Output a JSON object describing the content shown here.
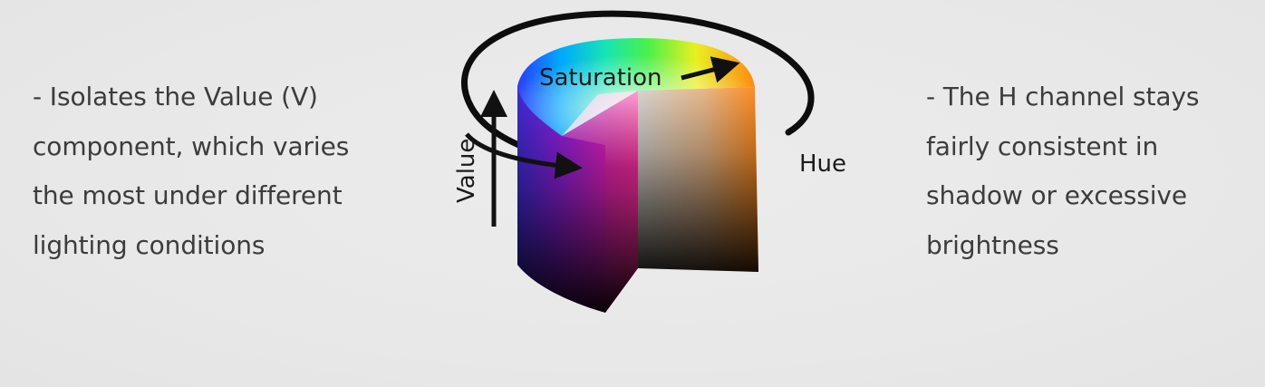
{
  "left_note": {
    "lines": [
      " - Isolates the Value (V)",
      "component, which varies",
      "the most under different",
      "lighting conditions"
    ]
  },
  "right_note": {
    "lines": [
      " - The H channel stays",
      "fairly consistent in",
      "shadow or excessive",
      "brightness"
    ]
  },
  "diagram": {
    "saturation_label": "Saturation",
    "value_label": "Value",
    "hue_label": "Hue"
  },
  "colors": {
    "background": "#e9e9e9",
    "text": "#3c3c3c",
    "arrow": "#111111"
  }
}
